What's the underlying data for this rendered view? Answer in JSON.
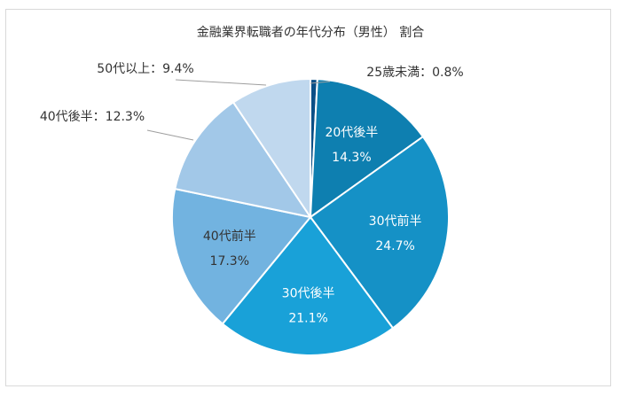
{
  "chart_data": {
    "type": "pie",
    "title": "金融業界転職者の年代分布（男性） 割合",
    "slices": [
      {
        "label": "25歳未満",
        "value": 0.8,
        "value_text": "0.8%",
        "color": "#0b4f86",
        "label_pos": "outside"
      },
      {
        "label": "20代後半",
        "value": 14.3,
        "value_text": "14.3%",
        "color": "#0e7fb0",
        "label_pos": "inside",
        "text_color": "#ffffff"
      },
      {
        "label": "30代前半",
        "value": 24.7,
        "value_text": "24.7%",
        "color": "#1591c6",
        "label_pos": "inside",
        "text_color": "#ffffff"
      },
      {
        "label": "30代後半",
        "value": 21.1,
        "value_text": "21.1%",
        "color": "#19a1d8",
        "label_pos": "inside",
        "text_color": "#ffffff"
      },
      {
        "label": "40代前半",
        "value": 17.3,
        "value_text": "17.3%",
        "color": "#72b3e0",
        "label_pos": "inside",
        "text_color": "#333333"
      },
      {
        "label": "40代後半",
        "value": 12.3,
        "value_text": "12.3%",
        "color": "#a2c8e8",
        "label_pos": "outside"
      },
      {
        "label": "50代以上",
        "value": 9.4,
        "value_text": "9.4%",
        "color": "#c0d8ee",
        "label_pos": "outside"
      }
    ],
    "label_separator": "：",
    "start_angle_deg": 0,
    "direction": "clockwise",
    "legend": "none"
  }
}
